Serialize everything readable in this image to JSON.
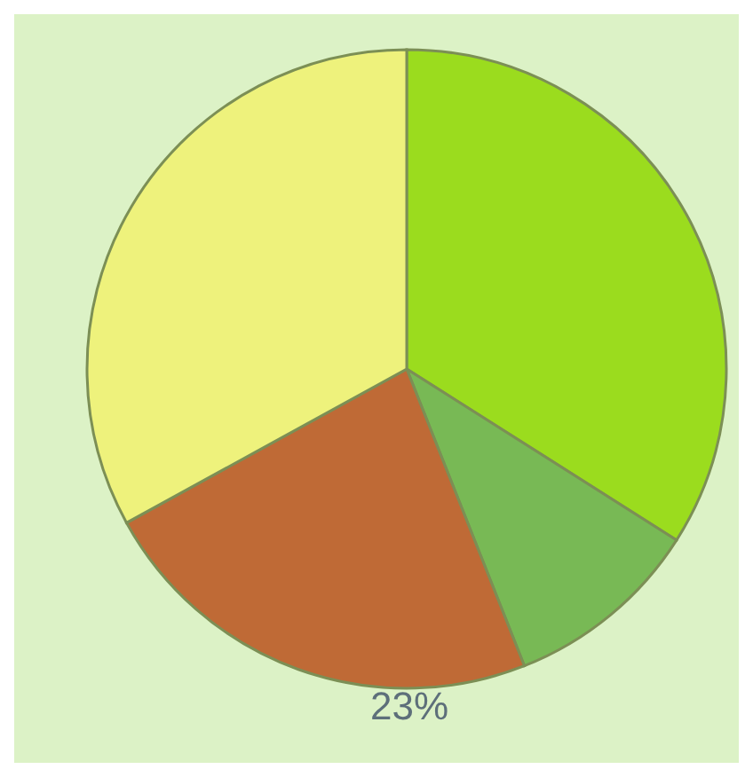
{
  "chart_data": {
    "type": "pie",
    "categories": [
      null,
      null,
      null,
      null
    ],
    "values": [
      34,
      10,
      23,
      33
    ],
    "colors": [
      "#9bdc1e",
      "#78b955",
      "#bf6a36",
      "#eef27c"
    ],
    "value_labels": [
      null,
      null,
      "23%",
      null
    ],
    "legend": false
  }
}
